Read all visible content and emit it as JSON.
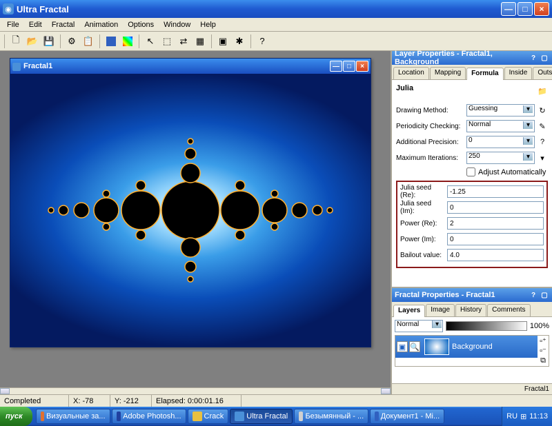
{
  "window": {
    "title": "Ultra Fractal"
  },
  "menu": [
    "File",
    "Edit",
    "Fractal",
    "Animation",
    "Options",
    "Window",
    "Help"
  ],
  "doc": {
    "title": "Fractal1"
  },
  "layer_props": {
    "header": "Layer Properties - Fractal1, Background",
    "tabs": [
      "Location",
      "Mapping",
      "Formula",
      "Inside",
      "Outside"
    ],
    "active_tab": 2,
    "formula_name": "Julia",
    "rows": [
      {
        "label": "Drawing Method:",
        "value": "Guessing",
        "type": "select",
        "icon": "↻"
      },
      {
        "label": "Periodicity Checking:",
        "value": "Normal",
        "type": "select",
        "icon": "✎"
      },
      {
        "label": "Additional Precision:",
        "value": "0",
        "type": "select",
        "icon": "?"
      },
      {
        "label": "Maximum Iterations:",
        "value": "250",
        "type": "select",
        "icon": "▾"
      }
    ],
    "adjust_label": "Adjust Automatically",
    "params": [
      {
        "label": "Julia seed (Re):",
        "value": "-1.25"
      },
      {
        "label": "Julia seed (Im):",
        "value": "0"
      },
      {
        "label": "Power (Re):",
        "value": "2"
      },
      {
        "label": "Power (Im):",
        "value": "0"
      },
      {
        "label": "Bailout value:",
        "value": "4.0"
      }
    ]
  },
  "fractal_props": {
    "header": "Fractal Properties - Fractal1",
    "tabs": [
      "Layers",
      "Image",
      "History",
      "Comments"
    ],
    "active_tab": 0,
    "blend_mode": "Normal",
    "opacity": "100%",
    "layer_name": "Background",
    "doc_name": "Fractal1"
  },
  "status": {
    "state": "Completed",
    "x": "X: -78",
    "y": "Y: -212",
    "elapsed": "Elapsed: 0:00:01.16"
  },
  "taskbar": {
    "start": "пуск",
    "items": [
      {
        "label": "Визуальные за...",
        "color": "#e07030",
        "active": false
      },
      {
        "label": "Adobe Photosh...",
        "color": "#2040a0",
        "active": false
      },
      {
        "label": "Crack",
        "color": "#e8c040",
        "active": false
      },
      {
        "label": "Ultra Fractal",
        "color": "#4a90d9",
        "active": true
      },
      {
        "label": "Безымянный - ...",
        "color": "#d0d0d0",
        "active": false
      },
      {
        "label": "Документ1 - Mi...",
        "color": "#3060c0",
        "active": false
      }
    ],
    "lang": "RU",
    "time": "11:13"
  },
  "colors": {
    "highlight_border": "#8b1a1a"
  }
}
